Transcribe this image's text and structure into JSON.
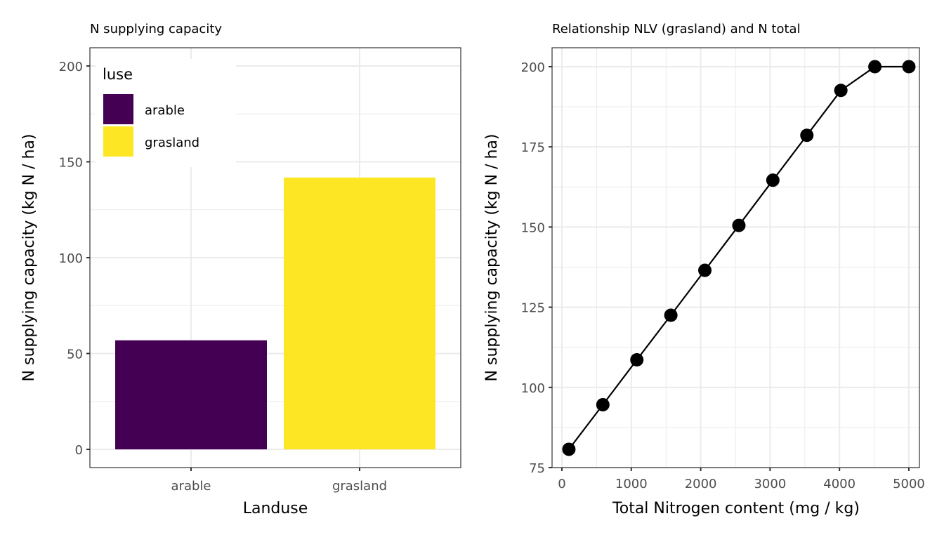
{
  "chart_data": [
    {
      "type": "bar",
      "title": "N supplying capacity",
      "xlabel": "Landuse",
      "ylabel": "N supplying capacity (kg N / ha)",
      "categories": [
        "arable",
        "grasland"
      ],
      "values": [
        56.9,
        141.8
      ],
      "colors": [
        "#440154",
        "#FDE725"
      ],
      "ylim": [
        -9.5,
        209.5
      ],
      "yticks": [
        0,
        50,
        100,
        150,
        200
      ],
      "grid": true,
      "legend": {
        "title": "luse",
        "placement": "top-left (inside)",
        "entries": [
          {
            "label": "arable",
            "color": "#440154"
          },
          {
            "label": "grasland",
            "color": "#FDE725"
          }
        ]
      }
    },
    {
      "type": "line",
      "title": "Relationship NLV (grasland) and N total",
      "xlabel": "Total Nitrogen content (mg / kg)",
      "ylabel": "N supplying capacity (kg N / ha)",
      "x": [
        100,
        590,
        1080,
        1570,
        2060,
        2550,
        3040,
        3530,
        4020,
        4510,
        5000
      ],
      "y": [
        80.7,
        94.6,
        108.6,
        122.5,
        136.5,
        150.5,
        164.6,
        178.6,
        192.6,
        200,
        200
      ],
      "xlim": [
        -142,
        5152
      ],
      "ylim": [
        75,
        205.9
      ],
      "xticks": [
        0,
        1000,
        2000,
        3000,
        4000,
        5000
      ],
      "yticks": [
        75,
        100,
        125,
        150,
        175,
        200
      ],
      "markers": true,
      "color": "#000000",
      "grid": true
    }
  ]
}
